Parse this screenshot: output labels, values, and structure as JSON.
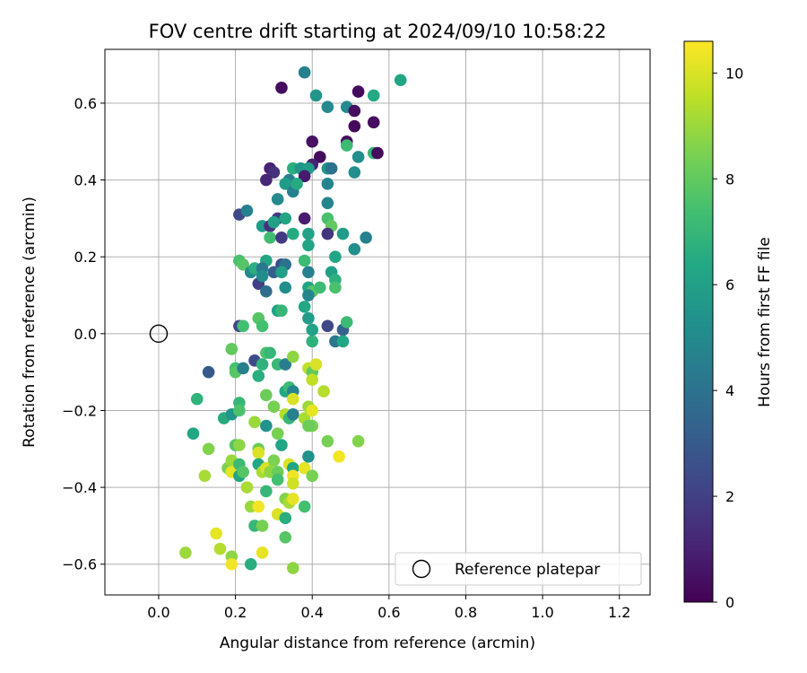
{
  "chart_data": {
    "type": "scatter",
    "title": "FOV centre drift starting at 2024/09/10 10:58:22",
    "xlabel": "Angular distance from reference (arcmin)",
    "ylabel": "Rotation from reference (arcmin)",
    "xlim": [
      -0.14,
      1.28
    ],
    "ylim": [
      -0.68,
      0.74
    ],
    "xticks": [
      "0.0",
      "0.2",
      "0.4",
      "0.6",
      "0.8",
      "1.0",
      "1.2"
    ],
    "yticks": [
      "−0.6",
      "−0.4",
      "−0.2",
      "0.0",
      "0.2",
      "0.4",
      "0.6"
    ],
    "grid": true,
    "legend": {
      "position": "lower-right",
      "entries": [
        "Reference platepar"
      ]
    },
    "reference_point": {
      "x": 0.0,
      "y": 0.0
    },
    "colorbar": {
      "label": "Hours from first FF file",
      "colormap": "viridis",
      "range": [
        0,
        10.6
      ],
      "ticks": [
        "0",
        "2",
        "4",
        "6",
        "8",
        "10"
      ]
    },
    "points": [
      {
        "x": 0.32,
        "y": 0.64,
        "t": 0.3
      },
      {
        "x": 0.38,
        "y": 0.68,
        "t": 4.6
      },
      {
        "x": 0.41,
        "y": 0.62,
        "t": 5.5
      },
      {
        "x": 0.44,
        "y": 0.59,
        "t": 5.0
      },
      {
        "x": 0.52,
        "y": 0.63,
        "t": 0.3
      },
      {
        "x": 0.56,
        "y": 0.62,
        "t": 6.4
      },
      {
        "x": 0.63,
        "y": 0.66,
        "t": 6.2
      },
      {
        "x": 0.49,
        "y": 0.59,
        "t": 5.0
      },
      {
        "x": 0.51,
        "y": 0.58,
        "t": 0.4
      },
      {
        "x": 0.51,
        "y": 0.54,
        "t": 0.2
      },
      {
        "x": 0.56,
        "y": 0.55,
        "t": 0.4
      },
      {
        "x": 0.4,
        "y": 0.5,
        "t": 0.5
      },
      {
        "x": 0.49,
        "y": 0.5,
        "t": 0.3
      },
      {
        "x": 0.49,
        "y": 0.49,
        "t": 7.2
      },
      {
        "x": 0.42,
        "y": 0.46,
        "t": 0.3
      },
      {
        "x": 0.52,
        "y": 0.46,
        "t": 5.2
      },
      {
        "x": 0.56,
        "y": 0.47,
        "t": 7.0
      },
      {
        "x": 0.57,
        "y": 0.47,
        "t": 0.3
      },
      {
        "x": 0.29,
        "y": 0.43,
        "t": 1.0
      },
      {
        "x": 0.3,
        "y": 0.42,
        "t": 1.5
      },
      {
        "x": 0.35,
        "y": 0.43,
        "t": 6.6
      },
      {
        "x": 0.37,
        "y": 0.43,
        "t": 5.5
      },
      {
        "x": 0.4,
        "y": 0.44,
        "t": 1.0
      },
      {
        "x": 0.39,
        "y": 0.43,
        "t": 5.8
      },
      {
        "x": 0.44,
        "y": 0.43,
        "t": 5.5
      },
      {
        "x": 0.45,
        "y": 0.43,
        "t": 4.0
      },
      {
        "x": 0.28,
        "y": 0.4,
        "t": 1.2
      },
      {
        "x": 0.34,
        "y": 0.4,
        "t": 4.5
      },
      {
        "x": 0.38,
        "y": 0.41,
        "t": 0.8
      },
      {
        "x": 0.44,
        "y": 0.39,
        "t": 4.8
      },
      {
        "x": 0.51,
        "y": 0.42,
        "t": 5.2
      },
      {
        "x": 0.33,
        "y": 0.39,
        "t": 5.8
      },
      {
        "x": 0.35,
        "y": 0.37,
        "t": 4.6
      },
      {
        "x": 0.36,
        "y": 0.39,
        "t": 6.5
      },
      {
        "x": 0.31,
        "y": 0.35,
        "t": 5.0
      },
      {
        "x": 0.44,
        "y": 0.34,
        "t": 4.8
      },
      {
        "x": 0.21,
        "y": 0.31,
        "t": 2.3
      },
      {
        "x": 0.23,
        "y": 0.32,
        "t": 4.6
      },
      {
        "x": 0.31,
        "y": 0.3,
        "t": 1.8
      },
      {
        "x": 0.33,
        "y": 0.3,
        "t": 6.2
      },
      {
        "x": 0.38,
        "y": 0.3,
        "t": 0.8
      },
      {
        "x": 0.44,
        "y": 0.3,
        "t": 7.5
      },
      {
        "x": 0.27,
        "y": 0.28,
        "t": 5.7
      },
      {
        "x": 0.29,
        "y": 0.28,
        "t": 1.5
      },
      {
        "x": 0.3,
        "y": 0.29,
        "t": 6.0
      },
      {
        "x": 0.45,
        "y": 0.28,
        "t": 8.0
      },
      {
        "x": 0.44,
        "y": 0.26,
        "t": 1.6
      },
      {
        "x": 0.29,
        "y": 0.25,
        "t": 7.3
      },
      {
        "x": 0.32,
        "y": 0.25,
        "t": 1.8
      },
      {
        "x": 0.35,
        "y": 0.26,
        "t": 6.5
      },
      {
        "x": 0.39,
        "y": 0.26,
        "t": 6.1
      },
      {
        "x": 0.48,
        "y": 0.26,
        "t": 5.8
      },
      {
        "x": 0.54,
        "y": 0.25,
        "t": 4.6
      },
      {
        "x": 0.39,
        "y": 0.23,
        "t": 6.2
      },
      {
        "x": 0.51,
        "y": 0.22,
        "t": 5.2
      },
      {
        "x": 0.21,
        "y": 0.19,
        "t": 7.5
      },
      {
        "x": 0.22,
        "y": 0.18,
        "t": 7.8
      },
      {
        "x": 0.28,
        "y": 0.19,
        "t": 6.3
      },
      {
        "x": 0.32,
        "y": 0.18,
        "t": 2.4
      },
      {
        "x": 0.33,
        "y": 0.18,
        "t": 4.0
      },
      {
        "x": 0.38,
        "y": 0.19,
        "t": 7.2
      },
      {
        "x": 0.46,
        "y": 0.2,
        "t": 6.3
      },
      {
        "x": 0.24,
        "y": 0.16,
        "t": 5.0
      },
      {
        "x": 0.25,
        "y": 0.17,
        "t": 6.6
      },
      {
        "x": 0.27,
        "y": 0.17,
        "t": 4.3
      },
      {
        "x": 0.3,
        "y": 0.16,
        "t": 3.2
      },
      {
        "x": 0.32,
        "y": 0.16,
        "t": 6.0
      },
      {
        "x": 0.39,
        "y": 0.16,
        "t": 4.6
      },
      {
        "x": 0.45,
        "y": 0.16,
        "t": 6.0
      },
      {
        "x": 0.46,
        "y": 0.14,
        "t": 6.7
      },
      {
        "x": 0.26,
        "y": 0.13,
        "t": 2.0
      },
      {
        "x": 0.27,
        "y": 0.15,
        "t": 5.1
      },
      {
        "x": 0.33,
        "y": 0.12,
        "t": 5.2
      },
      {
        "x": 0.39,
        "y": 0.12,
        "t": 6.1
      },
      {
        "x": 0.4,
        "y": 0.11,
        "t": 7.8
      },
      {
        "x": 0.42,
        "y": 0.12,
        "t": 7.2
      },
      {
        "x": 0.46,
        "y": 0.12,
        "t": 7.5
      },
      {
        "x": 0.28,
        "y": 0.11,
        "t": 3.8
      },
      {
        "x": 0.39,
        "y": 0.1,
        "t": 4.8
      },
      {
        "x": 0.38,
        "y": 0.07,
        "t": 6.3
      },
      {
        "x": 0.31,
        "y": 0.06,
        "t": 6.0
      },
      {
        "x": 0.32,
        "y": 0.06,
        "t": 7.0
      },
      {
        "x": 0.39,
        "y": 0.04,
        "t": 5.8
      },
      {
        "x": 0.21,
        "y": 0.02,
        "t": 2.2
      },
      {
        "x": 0.22,
        "y": 0.02,
        "t": 7.4
      },
      {
        "x": 0.26,
        "y": 0.04,
        "t": 7.8
      },
      {
        "x": 0.27,
        "y": 0.02,
        "t": 7.4
      },
      {
        "x": 0.4,
        "y": 0.01,
        "t": 6.1
      },
      {
        "x": 0.44,
        "y": 0.02,
        "t": 2.3
      },
      {
        "x": 0.48,
        "y": 0.01,
        "t": 3.3
      },
      {
        "x": 0.49,
        "y": 0.03,
        "t": 7.2
      },
      {
        "x": 0.4,
        "y": -0.02,
        "t": 6.8
      },
      {
        "x": 0.46,
        "y": -0.02,
        "t": 4.2
      },
      {
        "x": 0.48,
        "y": -0.02,
        "t": 6.3
      },
      {
        "x": 0.13,
        "y": -0.1,
        "t": 3.0
      },
      {
        "x": 0.19,
        "y": -0.04,
        "t": 8.0
      },
      {
        "x": 0.2,
        "y": -0.09,
        "t": 7.4
      },
      {
        "x": 0.2,
        "y": -0.1,
        "t": 7.8
      },
      {
        "x": 0.22,
        "y": -0.09,
        "t": 4.6
      },
      {
        "x": 0.25,
        "y": -0.07,
        "t": 2.4
      },
      {
        "x": 0.27,
        "y": -0.08,
        "t": 6.8
      },
      {
        "x": 0.28,
        "y": -0.05,
        "t": 7.6
      },
      {
        "x": 0.29,
        "y": -0.05,
        "t": 7.0
      },
      {
        "x": 0.31,
        "y": -0.08,
        "t": 7.1
      },
      {
        "x": 0.33,
        "y": -0.08,
        "t": 4.5
      },
      {
        "x": 0.35,
        "y": -0.06,
        "t": 8.8
      },
      {
        "x": 0.26,
        "y": -0.11,
        "t": 6.6
      },
      {
        "x": 0.39,
        "y": -0.09,
        "t": 9.6
      },
      {
        "x": 0.4,
        "y": -0.1,
        "t": 8.0
      },
      {
        "x": 0.41,
        "y": -0.08,
        "t": 10.0
      },
      {
        "x": 0.4,
        "y": -0.12,
        "t": 9.6
      },
      {
        "x": 0.1,
        "y": -0.17,
        "t": 6.8
      },
      {
        "x": 0.21,
        "y": -0.18,
        "t": 7.0
      },
      {
        "x": 0.28,
        "y": -0.16,
        "t": 8.2
      },
      {
        "x": 0.33,
        "y": -0.15,
        "t": 6.4
      },
      {
        "x": 0.34,
        "y": -0.14,
        "t": 7.2
      },
      {
        "x": 0.35,
        "y": -0.15,
        "t": 4.8
      },
      {
        "x": 0.35,
        "y": -0.17,
        "t": 10.0
      },
      {
        "x": 0.43,
        "y": -0.15,
        "t": 9.4
      },
      {
        "x": 0.17,
        "y": -0.22,
        "t": 6.5
      },
      {
        "x": 0.19,
        "y": -0.21,
        "t": 5.5
      },
      {
        "x": 0.21,
        "y": -0.2,
        "t": 7.6
      },
      {
        "x": 0.3,
        "y": -0.19,
        "t": 8.4
      },
      {
        "x": 0.33,
        "y": -0.21,
        "t": 9.4
      },
      {
        "x": 0.34,
        "y": -0.22,
        "t": 7.0
      },
      {
        "x": 0.35,
        "y": -0.21,
        "t": 4.6
      },
      {
        "x": 0.38,
        "y": -0.22,
        "t": 9.2
      },
      {
        "x": 0.39,
        "y": -0.19,
        "t": 9.0
      },
      {
        "x": 0.4,
        "y": -0.2,
        "t": 10.2
      },
      {
        "x": 0.4,
        "y": -0.24,
        "t": 8.4
      },
      {
        "x": 0.09,
        "y": -0.26,
        "t": 6.3
      },
      {
        "x": 0.25,
        "y": -0.23,
        "t": 9.0
      },
      {
        "x": 0.28,
        "y": -0.24,
        "t": 5.4
      },
      {
        "x": 0.31,
        "y": -0.26,
        "t": 8.4
      },
      {
        "x": 0.32,
        "y": -0.29,
        "t": 6.2
      },
      {
        "x": 0.39,
        "y": -0.24,
        "t": 8.2
      },
      {
        "x": 0.13,
        "y": -0.3,
        "t": 8.6
      },
      {
        "x": 0.18,
        "y": -0.35,
        "t": 8.5
      },
      {
        "x": 0.19,
        "y": -0.33,
        "t": 9.0
      },
      {
        "x": 0.2,
        "y": -0.29,
        "t": 7.8
      },
      {
        "x": 0.21,
        "y": -0.29,
        "t": 8.8
      },
      {
        "x": 0.26,
        "y": -0.3,
        "t": 8.2
      },
      {
        "x": 0.26,
        "y": -0.31,
        "t": 10.0
      },
      {
        "x": 0.44,
        "y": -0.28,
        "t": 8.4
      },
      {
        "x": 0.52,
        "y": -0.28,
        "t": 8.6
      },
      {
        "x": 0.12,
        "y": -0.37,
        "t": 9.2
      },
      {
        "x": 0.19,
        "y": -0.36,
        "t": 10.2
      },
      {
        "x": 0.21,
        "y": -0.34,
        "t": 7.2
      },
      {
        "x": 0.21,
        "y": -0.37,
        "t": 6.2
      },
      {
        "x": 0.22,
        "y": -0.36,
        "t": 7.8
      },
      {
        "x": 0.26,
        "y": -0.34,
        "t": 6.3
      },
      {
        "x": 0.27,
        "y": -0.36,
        "t": 9.2
      },
      {
        "x": 0.28,
        "y": -0.35,
        "t": 10.0
      },
      {
        "x": 0.29,
        "y": -0.36,
        "t": 8.8
      },
      {
        "x": 0.3,
        "y": -0.33,
        "t": 8.5
      },
      {
        "x": 0.31,
        "y": -0.36,
        "t": 8.2
      },
      {
        "x": 0.34,
        "y": -0.34,
        "t": 10.0
      },
      {
        "x": 0.35,
        "y": -0.35,
        "t": 6.2
      },
      {
        "x": 0.35,
        "y": -0.37,
        "t": 10.4
      },
      {
        "x": 0.38,
        "y": -0.35,
        "t": 10.2
      },
      {
        "x": 0.39,
        "y": -0.32,
        "t": 5.4
      },
      {
        "x": 0.4,
        "y": -0.37,
        "t": 8.4
      },
      {
        "x": 0.47,
        "y": -0.32,
        "t": 10.4
      },
      {
        "x": 0.23,
        "y": -0.4,
        "t": 9.2
      },
      {
        "x": 0.28,
        "y": -0.41,
        "t": 7.0
      },
      {
        "x": 0.31,
        "y": -0.38,
        "t": 7.4
      },
      {
        "x": 0.35,
        "y": -0.39,
        "t": 9.8
      },
      {
        "x": 0.24,
        "y": -0.45,
        "t": 9.0
      },
      {
        "x": 0.26,
        "y": -0.45,
        "t": 10.4
      },
      {
        "x": 0.33,
        "y": -0.43,
        "t": 8.6
      },
      {
        "x": 0.34,
        "y": -0.44,
        "t": 9.2
      },
      {
        "x": 0.35,
        "y": -0.43,
        "t": 10.2
      },
      {
        "x": 0.38,
        "y": -0.45,
        "t": 7.4
      },
      {
        "x": 0.31,
        "y": -0.47,
        "t": 10.0
      },
      {
        "x": 0.33,
        "y": -0.48,
        "t": 6.6
      },
      {
        "x": 0.25,
        "y": -0.5,
        "t": 7.0
      },
      {
        "x": 0.27,
        "y": -0.5,
        "t": 8.4
      },
      {
        "x": 0.15,
        "y": -0.52,
        "t": 10.2
      },
      {
        "x": 0.33,
        "y": -0.53,
        "t": 7.8
      },
      {
        "x": 0.07,
        "y": -0.57,
        "t": 9.0
      },
      {
        "x": 0.16,
        "y": -0.56,
        "t": 9.4
      },
      {
        "x": 0.19,
        "y": -0.58,
        "t": 8.8
      },
      {
        "x": 0.27,
        "y": -0.57,
        "t": 10.2
      },
      {
        "x": 0.19,
        "y": -0.6,
        "t": 10.4
      },
      {
        "x": 0.24,
        "y": -0.6,
        "t": 6.6
      },
      {
        "x": 0.35,
        "y": -0.61,
        "t": 8.8
      }
    ]
  }
}
